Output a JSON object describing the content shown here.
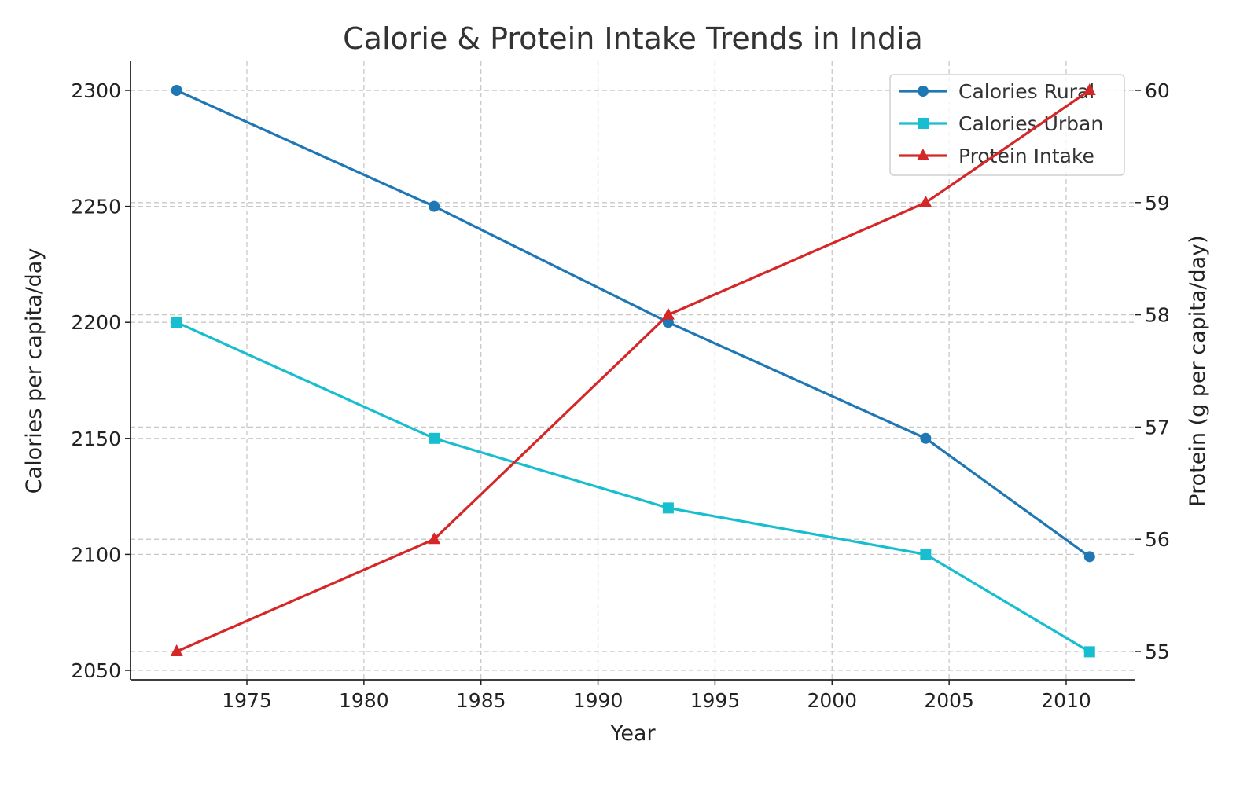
{
  "chart_data": {
    "type": "line",
    "title": "Calorie & Protein Intake Trends in India",
    "xlabel": "Year",
    "ylabel": "Calories per capita/day",
    "y2label": "Protein (g per capita/day)",
    "x": [
      1972,
      1983,
      1993,
      2004,
      2011
    ],
    "xticks": [
      "1975",
      "1980",
      "1985",
      "1990",
      "1995",
      "2000",
      "2005",
      "2010"
    ],
    "yticks": [
      "2050",
      "2100",
      "2150",
      "2200",
      "2250",
      "2300"
    ],
    "y2ticks": [
      "55",
      "56",
      "57",
      "58",
      "59",
      "60"
    ],
    "series": [
      {
        "name": "Calories Rural",
        "axis": "left",
        "marker": "circle",
        "color": "#1f77b4",
        "values": [
          2300,
          2250,
          2200,
          2150,
          2099
        ]
      },
      {
        "name": "Calories Urban",
        "axis": "left",
        "marker": "square",
        "color": "#17becf",
        "values": [
          2200,
          2150,
          2120,
          2100,
          2058
        ]
      },
      {
        "name": "Protein Intake",
        "axis": "right",
        "marker": "triangle",
        "color": "#d62728",
        "values": [
          55,
          56,
          58,
          59,
          60
        ]
      }
    ],
    "grid": true,
    "legend_position": "top-right"
  }
}
